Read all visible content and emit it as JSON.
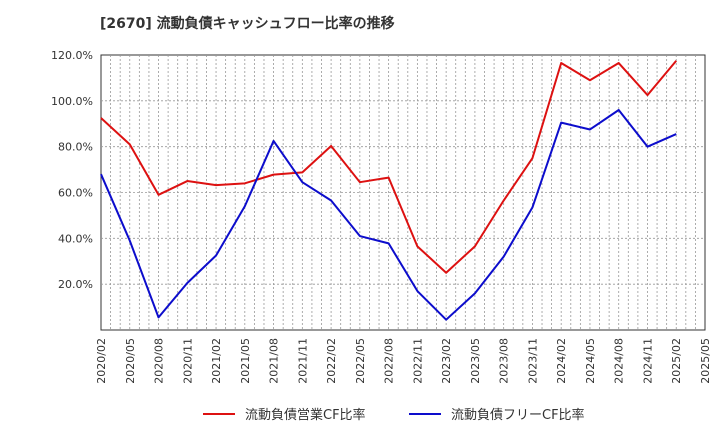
{
  "chart_data": {
    "type": "line",
    "title": "[2670]  流動負債キャッシュフロー比率の推移",
    "xlabel": "",
    "ylabel": "",
    "ylim": [
      0,
      120
    ],
    "yticks": [
      "20.0%",
      "40.0%",
      "60.0%",
      "80.0%",
      "100.0%",
      "120.0%"
    ],
    "ytick_values": [
      20,
      40,
      60,
      80,
      100,
      120
    ],
    "grid": true,
    "legend_position": "bottom",
    "x": [
      "2020/02",
      "2020/05",
      "2020/08",
      "2020/11",
      "2021/02",
      "2021/05",
      "2021/08",
      "2021/11",
      "2022/02",
      "2022/05",
      "2022/08",
      "2022/11",
      "2023/02",
      "2023/05",
      "2023/08",
      "2023/11",
      "2024/02",
      "2024/05",
      "2024/08",
      "2024/11",
      "2025/02",
      "2025/05"
    ],
    "series": [
      {
        "name": "流動負債営業CF比率",
        "color": "#dd1111",
        "values": [
          92.5,
          81,
          59,
          65,
          63.2,
          64,
          67.8,
          68.8,
          80.3,
          64.5,
          66.5,
          36.5,
          25,
          36.5,
          56.5,
          75,
          116.5,
          109,
          116.5,
          102.5,
          117.5,
          null
        ]
      },
      {
        "name": "流動負債フリーCF比率",
        "color": "#0d0dcc",
        "values": [
          68,
          39,
          5.5,
          20.5,
          32.5,
          54,
          82.5,
          64.5,
          56.5,
          41,
          37.8,
          17,
          4.5,
          16,
          32,
          53.5,
          90.5,
          87.5,
          96,
          80,
          85.5,
          null
        ]
      }
    ]
  }
}
